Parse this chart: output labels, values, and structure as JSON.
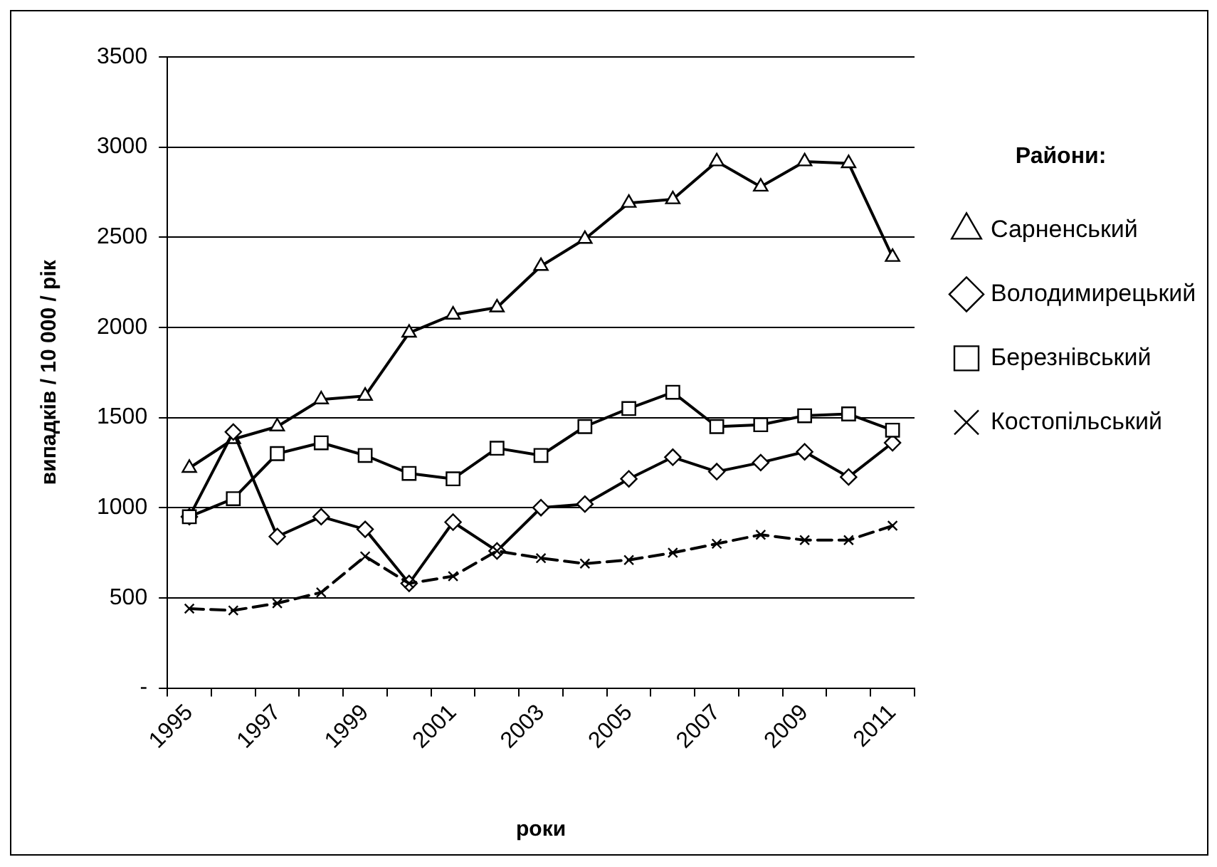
{
  "chart_data": {
    "type": "line",
    "categories": [
      "1995",
      null,
      "1997",
      null,
      "1999",
      null,
      "2001",
      null,
      "2003",
      null,
      "2005",
      null,
      "2007",
      null,
      "2009",
      null,
      "2011"
    ],
    "series": [
      {
        "name": "Сарненський",
        "color": "#000000",
        "marker": "triangle",
        "line_style": "solid",
        "values": [
          1220,
          1380,
          1450,
          1600,
          1620,
          1970,
          2070,
          2110,
          2340,
          2490,
          2690,
          2710,
          2920,
          2780,
          2920,
          2910,
          2390
        ]
      },
      {
        "name": "Володимирецький",
        "color": "#000000",
        "marker": "diamond",
        "line_style": "solid",
        "values": [
          950,
          1420,
          840,
          950,
          880,
          580,
          920,
          760,
          1000,
          1020,
          1160,
          1280,
          1200,
          1250,
          1310,
          1170,
          1360
        ]
      },
      {
        "name": "Березнівський",
        "color": "#000000",
        "marker": "square",
        "line_style": "solid",
        "values": [
          950,
          1050,
          1300,
          1360,
          1290,
          1190,
          1160,
          1330,
          1290,
          1450,
          1550,
          1640,
          1450,
          1460,
          1510,
          1520,
          1430
        ]
      },
      {
        "name": "Костопільський",
        "color": "#000000",
        "marker": "cross",
        "line_style": "dashed",
        "values": [
          440,
          430,
          470,
          530,
          730,
          580,
          620,
          760,
          720,
          690,
          710,
          750,
          800,
          850,
          820,
          820,
          900
        ]
      }
    ],
    "ylim": [
      0,
      3500
    ],
    "yticks": [
      {
        "value": 0,
        "label": "-"
      },
      500,
      1000,
      1500,
      2000,
      2500,
      3000,
      3500
    ],
    "xlabel": "роки",
    "ylabel": "випадків / 10 000 / рік",
    "legend": "right",
    "legend_title": "Райони:",
    "grid": "y"
  }
}
